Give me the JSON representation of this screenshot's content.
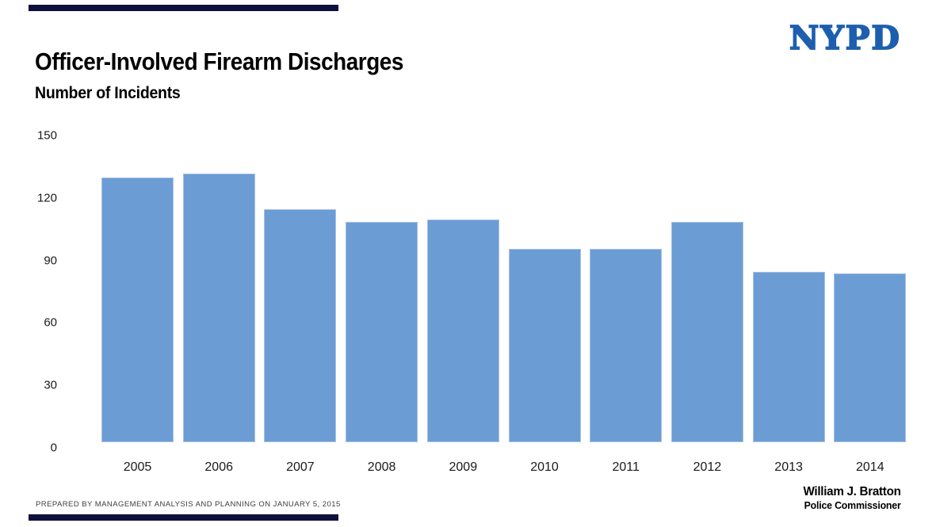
{
  "page": {
    "title": "Officer-Involved Firearm Discharges",
    "subtitle": "Number of Incidents",
    "logo_text": "NYPD",
    "footer_left": "PREPARED BY MANAGEMENT ANALYSIS AND PLANNING ON JANUARY 5, 2015",
    "signature_name": "William J. Bratton",
    "signature_title": "Police Commissioner"
  },
  "colors": {
    "bar_fill": "#6b9cd4",
    "bar_border": "#a7c1e4",
    "logo_blue": "#1d5fae",
    "accent_bar": "#10103c",
    "footer_text": "#3d3d3d"
  },
  "chart_data": {
    "type": "bar",
    "title": "Officer-Involved Firearm Discharges",
    "subtitle": "Number of Incidents",
    "xlabel": "",
    "ylabel": "Number of Incidents",
    "categories": [
      "2005",
      "2006",
      "2007",
      "2008",
      "2009",
      "2010",
      "2011",
      "2012",
      "2013",
      "2014"
    ],
    "values": [
      127,
      129,
      112,
      106,
      107,
      93,
      93,
      106,
      82,
      81
    ],
    "y_ticks": [
      150,
      120,
      90,
      60,
      30,
      0
    ],
    "ylim": [
      0,
      150
    ],
    "grid": false,
    "legend_position": "none"
  }
}
